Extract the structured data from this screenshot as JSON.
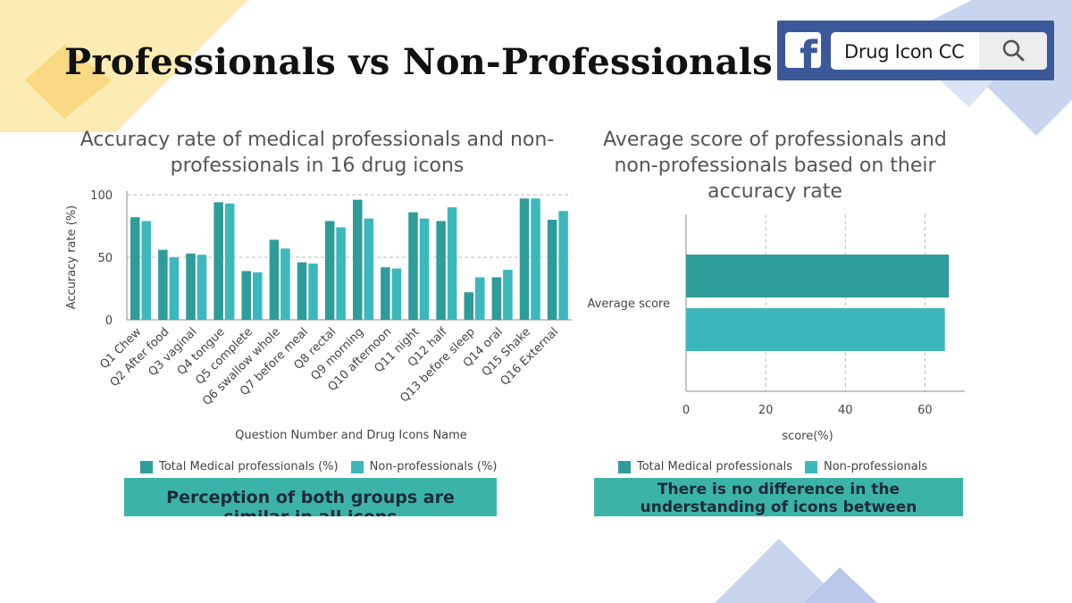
{
  "header": {
    "title": "Professionals vs Non-Professionals",
    "search_text": "Drug Icon CC",
    "icons": [
      "facebook-logo-icon",
      "search-icon"
    ]
  },
  "colors": {
    "professionals": "#2e9c99",
    "non_professionals": "#3cb8bc",
    "banner": "#3cb3a8",
    "facebook": "#3b5998"
  },
  "chart_data": [
    {
      "type": "bar",
      "title": "Accuracy rate of medical professionals and non-professionals in 16 drug icons",
      "title_lines": [
        "Accuracy rate of medical professionals and non-",
        "professionals in 16 drug icons"
      ],
      "xlabel": "Question Number and Drug Icons Name",
      "ylabel": "Accuracy rate (%)",
      "ylim": [
        0,
        100
      ],
      "yticks": [
        0,
        50,
        100
      ],
      "grid": true,
      "legend_position": "bottom",
      "categories": [
        "Q1 Chew",
        "Q2 After food",
        "Q3 vaginal",
        "Q4 tongue",
        "Q5 complete",
        "Q6 swallow whole",
        "Q7 before meal",
        "Q8 rectal",
        "Q9 morning",
        "Q10 afternoon",
        "Q11 night",
        "Q12 half",
        "Q13 before sleep",
        "Q14 oral",
        "Q15 Shake",
        "Q16 External"
      ],
      "series": [
        {
          "name": "Total Medical professionals (%)",
          "values": [
            82,
            56,
            53,
            94,
            39,
            64,
            46,
            79,
            96,
            42,
            86,
            79,
            22,
            34,
            97,
            80
          ]
        },
        {
          "name": "Non-professionals (%)",
          "values": [
            79,
            50,
            52,
            93,
            38,
            57,
            45,
            74,
            81,
            41,
            81,
            90,
            34,
            40,
            97,
            87
          ]
        }
      ]
    },
    {
      "type": "bar",
      "orientation": "horizontal",
      "title": "Average score of professionals and non-professionals based on their accuracy rate",
      "title_lines": [
        "Average score of professionals and",
        "non-professionals based on their",
        "accuracy rate"
      ],
      "xlabel": "score(%)",
      "ylabel": "",
      "xlim": [
        0,
        70
      ],
      "xticks": [
        0,
        20,
        40,
        60
      ],
      "grid": true,
      "legend_position": "bottom",
      "categories": [
        "Average score"
      ],
      "series": [
        {
          "name": "Total Medical professionals",
          "values": [
            66
          ]
        },
        {
          "name": "Non-professionals",
          "values": [
            65
          ]
        }
      ]
    }
  ],
  "banners": [
    {
      "lines": [
        "Perception of both groups are",
        "similar in all icons"
      ]
    },
    {
      "lines": [
        "There is no difference in the",
        "understanding of icons between"
      ]
    }
  ]
}
